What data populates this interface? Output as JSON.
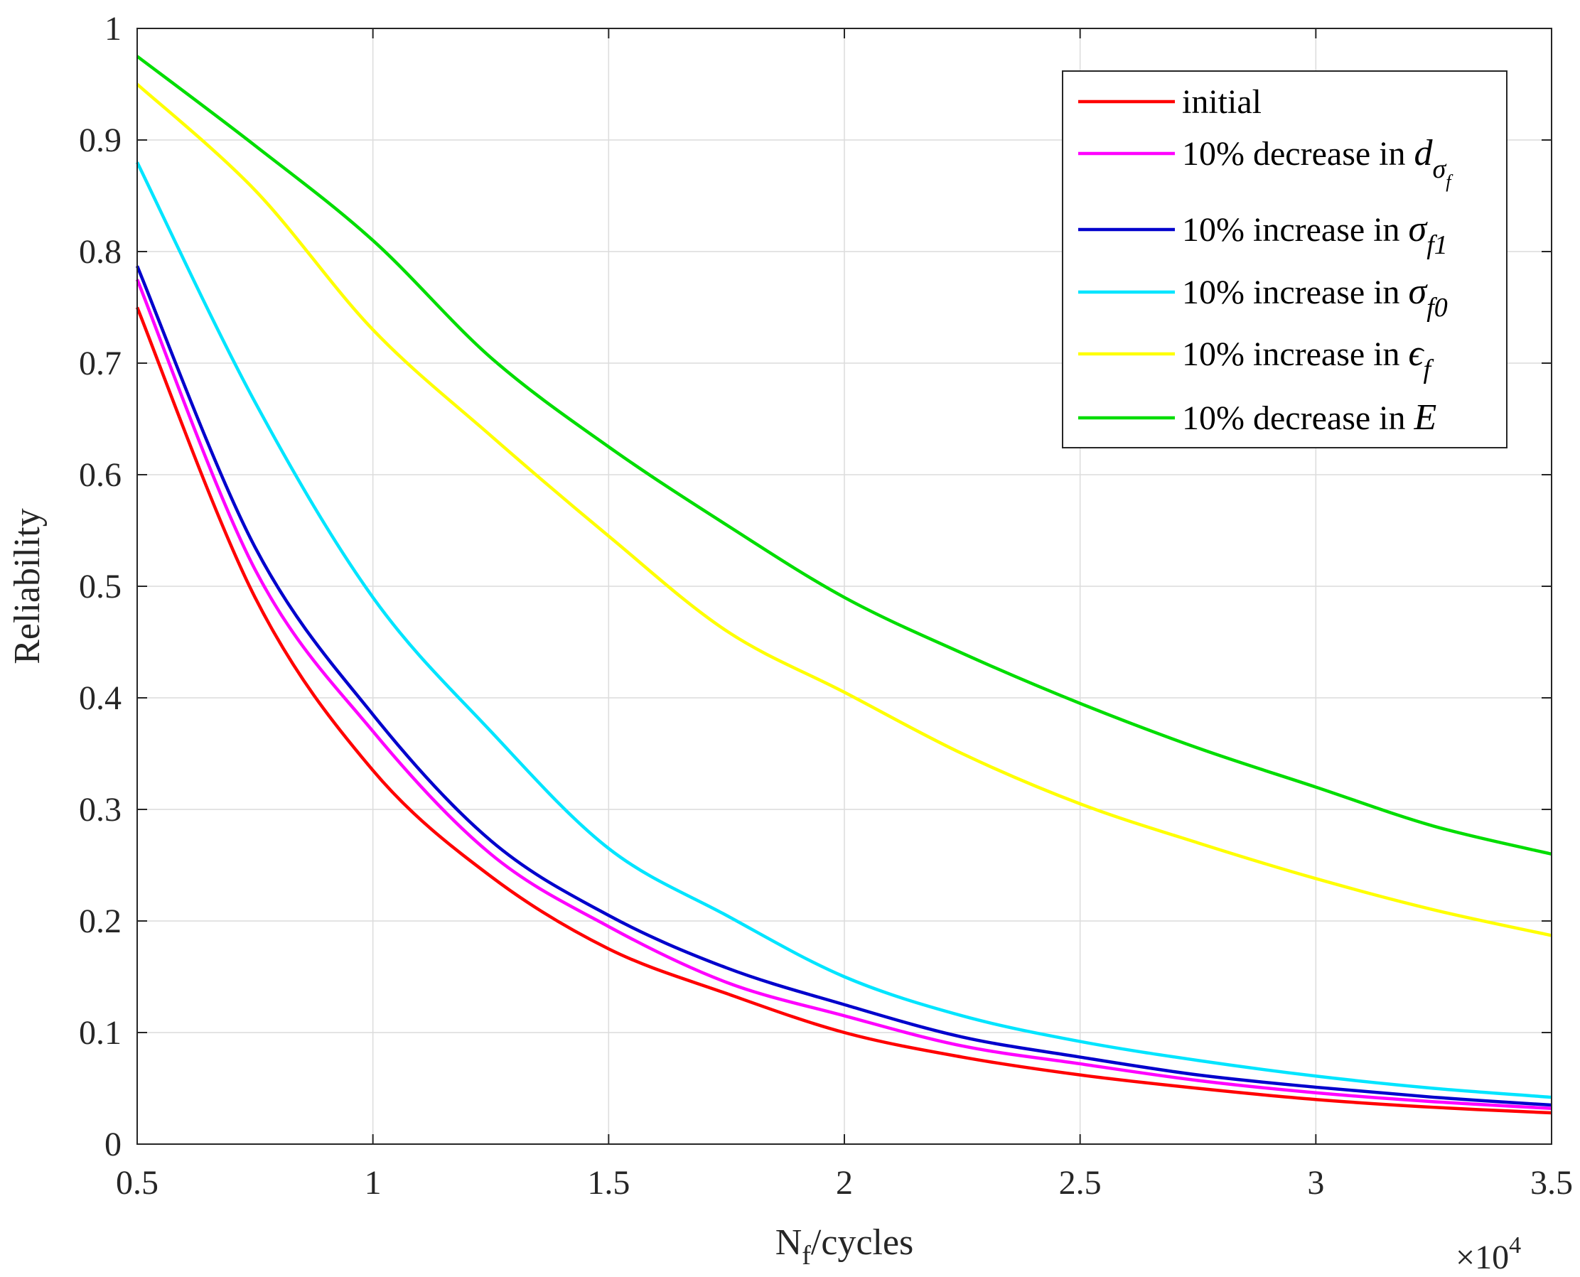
{
  "chart_data": {
    "type": "line",
    "title": "",
    "xlabel": "N",
    "xlabel_sub": "f",
    "xlabel_rest": "/cycles",
    "ylabel": "Reliability",
    "x_multiplier_label": "×10",
    "x_multiplier_exp": "4",
    "xlim": [
      0.5,
      3.5
    ],
    "ylim": [
      0,
      1
    ],
    "xticks": [
      0.5,
      1,
      1.5,
      2,
      2.5,
      3,
      3.5
    ],
    "xtick_labels": [
      "0.5",
      "1",
      "1.5",
      "2",
      "2.5",
      "3",
      "3.5"
    ],
    "yticks": [
      0,
      0.1,
      0.2,
      0.3,
      0.4,
      0.5,
      0.6,
      0.7,
      0.8,
      0.9,
      1
    ],
    "ytick_labels": [
      "0",
      "0.1",
      "0.2",
      "0.3",
      "0.4",
      "0.5",
      "0.6",
      "0.7",
      "0.8",
      "0.9",
      "1"
    ],
    "grid": true,
    "legend_position": "top-right",
    "x": [
      0.5,
      0.75,
      1.0,
      1.25,
      1.5,
      1.75,
      2.0,
      2.25,
      2.5,
      2.75,
      3.0,
      3.25,
      3.5
    ],
    "series": [
      {
        "name": "initial",
        "legend_text": "initial",
        "legend_symbol": "",
        "legend_sub": "",
        "color": "#ff0000",
        "values": [
          0.75,
          0.49,
          0.335,
          0.24,
          0.175,
          0.135,
          0.1,
          0.078,
          0.062,
          0.05,
          0.04,
          0.033,
          0.028
        ]
      },
      {
        "name": "10% decrease in d_σf",
        "legend_text": "10% decrease in ",
        "legend_symbol": "d",
        "legend_sub": "σ",
        "legend_subsub": "f",
        "color": "#ff00ff",
        "values": [
          0.775,
          0.515,
          0.37,
          0.26,
          0.195,
          0.145,
          0.115,
          0.088,
          0.072,
          0.057,
          0.046,
          0.038,
          0.032
        ]
      },
      {
        "name": "10% increase in σ_f1",
        "legend_text": "10% increase in ",
        "legend_symbol": "σ",
        "legend_sub": "f1",
        "color": "#0000cc",
        "values": [
          0.787,
          0.535,
          0.385,
          0.272,
          0.205,
          0.158,
          0.125,
          0.096,
          0.078,
          0.062,
          0.051,
          0.042,
          0.035
        ]
      },
      {
        "name": "10% increase in σ_f0",
        "legend_text": "10% increase in ",
        "legend_symbol": "σ",
        "legend_sub": "f0",
        "color": "#00e5ff",
        "values": [
          0.88,
          0.665,
          0.49,
          0.37,
          0.265,
          0.205,
          0.15,
          0.115,
          0.092,
          0.075,
          0.061,
          0.05,
          0.042
        ]
      },
      {
        "name": "10% increase in ε_f",
        "legend_text": "10% increase in ",
        "legend_symbol": "ϵ",
        "legend_sub": "f",
        "color": "#ffff00",
        "values": [
          0.95,
          0.855,
          0.73,
          0.635,
          0.545,
          0.46,
          0.405,
          0.35,
          0.305,
          0.27,
          0.238,
          0.21,
          0.187
        ]
      },
      {
        "name": "10% decrease in E",
        "legend_text": "10% decrease in ",
        "legend_symbol": "E",
        "legend_sub": "",
        "color": "#00dd00",
        "values": [
          0.975,
          0.895,
          0.81,
          0.705,
          0.625,
          0.555,
          0.49,
          0.44,
          0.395,
          0.355,
          0.32,
          0.285,
          0.26
        ]
      }
    ]
  }
}
